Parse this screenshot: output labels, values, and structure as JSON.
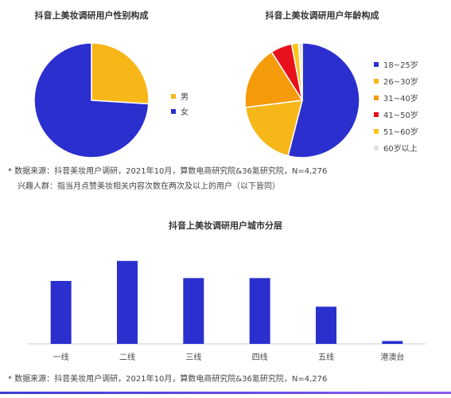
{
  "colors": {
    "blue": "#2b2fce",
    "gold": "#f7b718",
    "orange": "#f59b0a",
    "red": "#e8101c",
    "yellow": "#fbc51a",
    "lightgray": "#e2e2e2"
  },
  "note1": {
    "source": "* 数据来源：抖音美妆用户调研，2021年10月，算数电商研究院&36氪研究院，N=4,276",
    "interest": "兴趣人群：指当月点赞美妆相关内容次数在两次及以上的用户（以下皆同）"
  },
  "note2": {
    "source": "* 数据来源：抖音美妆用户调研，2021年10月，算数电商研究院&36氪研究院，N=4,276"
  },
  "chart_data": [
    {
      "type": "pie",
      "title": "抖音上美妆调研用户性别构成",
      "labels": [
        "男",
        "女"
      ],
      "values": [
        26,
        74
      ],
      "colors": [
        "#f7b718",
        "#2b2fce"
      ],
      "legend_position": "right"
    },
    {
      "type": "pie",
      "title": "抖音上美妆调研用户年龄构成",
      "labels": [
        "18~25岁",
        "26~30岁",
        "31~40岁",
        "41~50岁",
        "51~60岁",
        "60岁以上"
      ],
      "values": [
        54,
        19,
        18,
        6,
        2,
        1
      ],
      "colors": [
        "#2b2fce",
        "#f7b718",
        "#f59b0a",
        "#e8101c",
        "#fbc51a",
        "#e2e2e2"
      ],
      "legend_position": "right"
    },
    {
      "type": "bar",
      "title": "抖音上美妆调研用户城市分层",
      "categories": [
        "一线",
        "二线",
        "三线",
        "四线",
        "五线",
        "港澳台"
      ],
      "values": [
        22,
        29,
        23,
        23,
        13,
        1
      ],
      "ylim": [
        0,
        32
      ],
      "color": "#2b2fce",
      "grid": false
    }
  ]
}
